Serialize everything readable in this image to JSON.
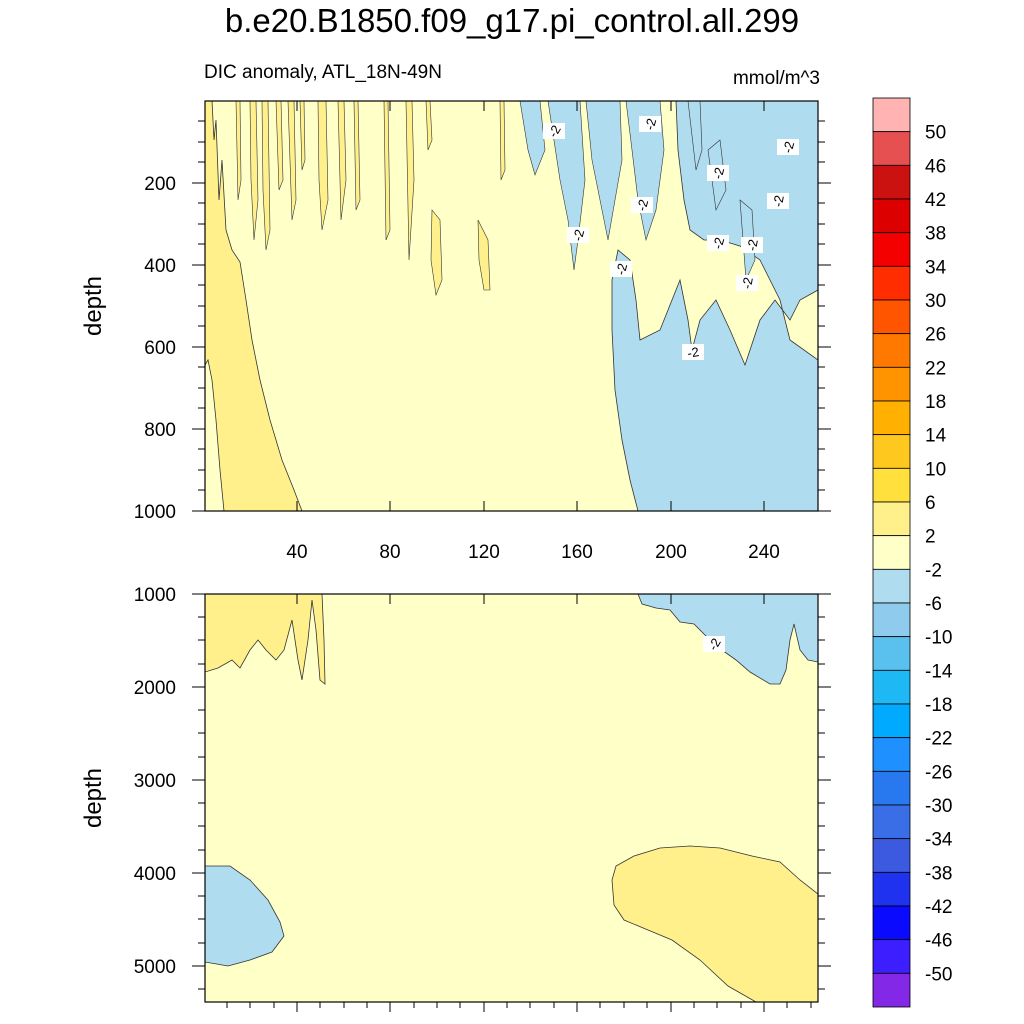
{
  "title": "b.e20.B1850.f09_g17.pi_control.all.299",
  "subtitle_left": "DIC anomaly, ATL_18N-49N",
  "subtitle_right": "mmol/m^3",
  "chart_data": [
    {
      "type": "heatmap",
      "panel": "upper",
      "xlabel": "",
      "ylabel": "depth",
      "xlim": [
        0,
        265
      ],
      "ylim": [
        1000,
        0
      ],
      "x_ticks": [
        "40",
        "80",
        "120",
        "160",
        "200",
        "240"
      ],
      "y_ticks": [
        "200",
        "400",
        "600",
        "800",
        "1000"
      ],
      "contour_labels": [
        "-2",
        "-2",
        "-2",
        "-2",
        "-2",
        "-2",
        "-2",
        "-2",
        "-2",
        "-2",
        "-2",
        "-2"
      ]
    },
    {
      "type": "heatmap",
      "panel": "lower",
      "xlabel": "",
      "ylabel": "depth",
      "xlim": [
        0,
        265
      ],
      "ylim": [
        5400,
        1000
      ],
      "y_ticks": [
        "1000",
        "2000",
        "3000",
        "4000",
        "5000"
      ],
      "contour_labels": [
        "-2"
      ]
    }
  ],
  "colorbar": {
    "labels": [
      "50",
      "46",
      "42",
      "38",
      "34",
      "30",
      "26",
      "22",
      "18",
      "14",
      "10",
      "6",
      "2",
      "-2",
      "-6",
      "-10",
      "-14",
      "-18",
      "-22",
      "-26",
      "-30",
      "-34",
      "-38",
      "-42",
      "-46",
      "-50"
    ],
    "colors": [
      "#ffb3b3",
      "#e65050",
      "#cc1111",
      "#dd0000",
      "#f50000",
      "#ff2d00",
      "#ff5500",
      "#ff7800",
      "#ff9400",
      "#ffb000",
      "#ffc81e",
      "#ffe03c",
      "#fff08c",
      "#ffffc8",
      "#b0dcf0",
      "#8ecbec",
      "#5ac0ee",
      "#1eb8f5",
      "#00aaff",
      "#1e90ff",
      "#2878f0",
      "#3a6ee6",
      "#3c5ae0",
      "#1e32f0",
      "#0a0aff",
      "#3c1eff",
      "#8228e6"
    ]
  },
  "colors": {
    "lightyellow": "#ffffc8",
    "yellow": "#fff08c",
    "lightblue": "#b0dcf0"
  }
}
